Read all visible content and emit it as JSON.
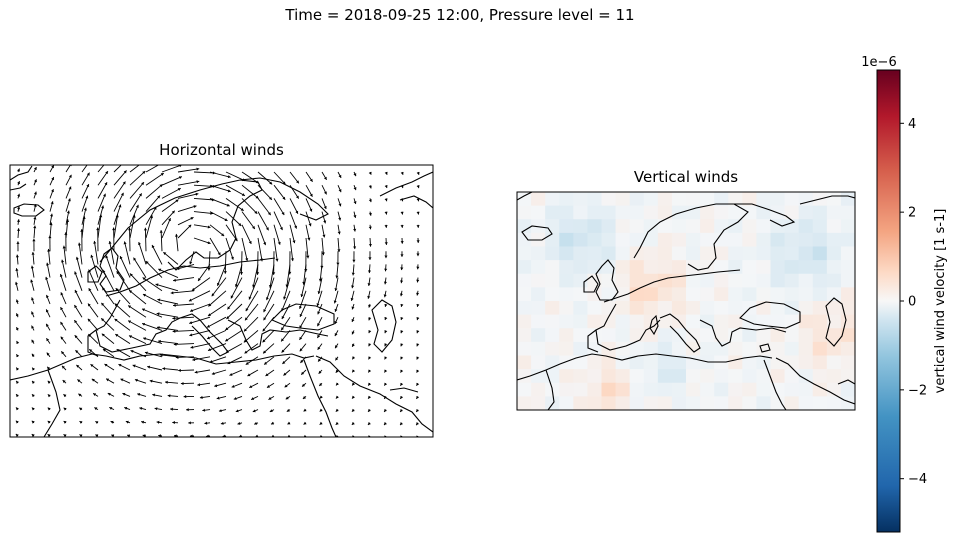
{
  "figure": {
    "suptitle": "Time = 2018-09-25 12:00, Pressure level = 11"
  },
  "left_panel": {
    "title": "Horizontal winds"
  },
  "right_panel": {
    "title": "Vertical winds"
  },
  "colorbar": {
    "label": "vertical wind velocity [1 s-1]",
    "exponent": "1e−6",
    "ticks": [
      {
        "value": 4,
        "label": "4"
      },
      {
        "value": 2,
        "label": "2"
      },
      {
        "value": 0,
        "label": "0"
      },
      {
        "value": -2,
        "label": "−2"
      },
      {
        "value": -4,
        "label": "−4"
      }
    ],
    "range": [
      -5.2,
      5.2
    ],
    "colormap": "RdBu_r",
    "colors": {
      "low": "#053061",
      "mid": "#f7f7f7",
      "high": "#67001f"
    }
  },
  "chart_data": [
    {
      "type": "quiver",
      "title": "Horizontal winds",
      "projection": "PlateCarree",
      "extent_lon": [
        -30,
        60
      ],
      "extent_lat": [
        20,
        75
      ],
      "field": "cyclonic circulation centred over western Europe"
    },
    {
      "type": "heatmap",
      "title": "Vertical winds",
      "projection": "PlateCarree",
      "extent_lon": [
        -20,
        55
      ],
      "extent_lat": [
        25,
        72
      ],
      "colorbar_range": [
        -5.2e-06,
        5.2e-06
      ]
    }
  ]
}
